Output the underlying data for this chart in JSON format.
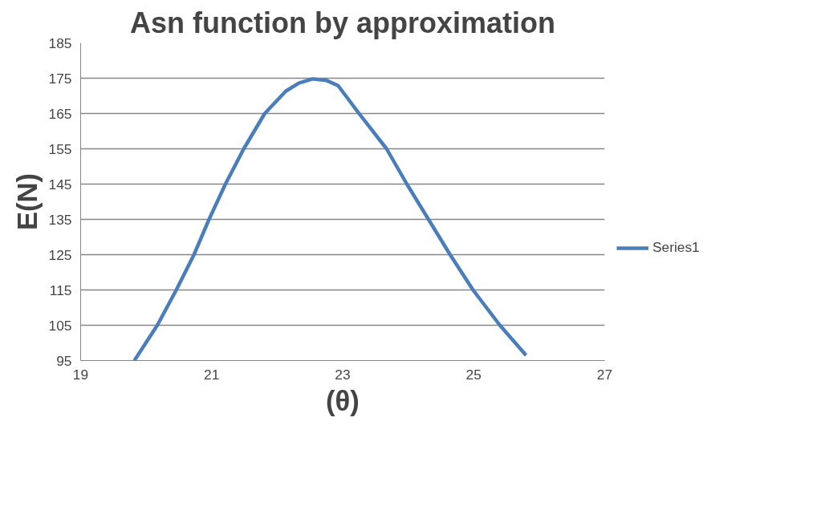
{
  "chart_data": {
    "type": "line",
    "title": "Asn function by approximation",
    "xlabel": "(θ)",
    "ylabel": "E(N)",
    "x": [
      19.82,
      20.17,
      20.46,
      20.73,
      20.96,
      21.21,
      21.49,
      21.81,
      22.13,
      22.33,
      22.54,
      22.75,
      22.93,
      23.25,
      23.67,
      23.98,
      24.31,
      24.64,
      24.99,
      25.4,
      25.8
    ],
    "series": [
      {
        "name": "Series1",
        "color": "#4a7ebb",
        "values": [
          95,
          105,
          115,
          125,
          135,
          145,
          155,
          165,
          171.3,
          173.6,
          174.8,
          174.4,
          172.9,
          165,
          155,
          145,
          135,
          125,
          115,
          105,
          96.5
        ]
      }
    ],
    "xlim": [
      19,
      27
    ],
    "xticks": [
      19,
      21,
      23,
      25,
      27
    ],
    "ylim": [
      95,
      185
    ],
    "yticks": [
      95,
      105,
      115,
      125,
      135,
      145,
      155,
      165,
      175,
      185
    ],
    "grid": "y",
    "legend": "right",
    "marker": "none",
    "line_style": "solid"
  }
}
